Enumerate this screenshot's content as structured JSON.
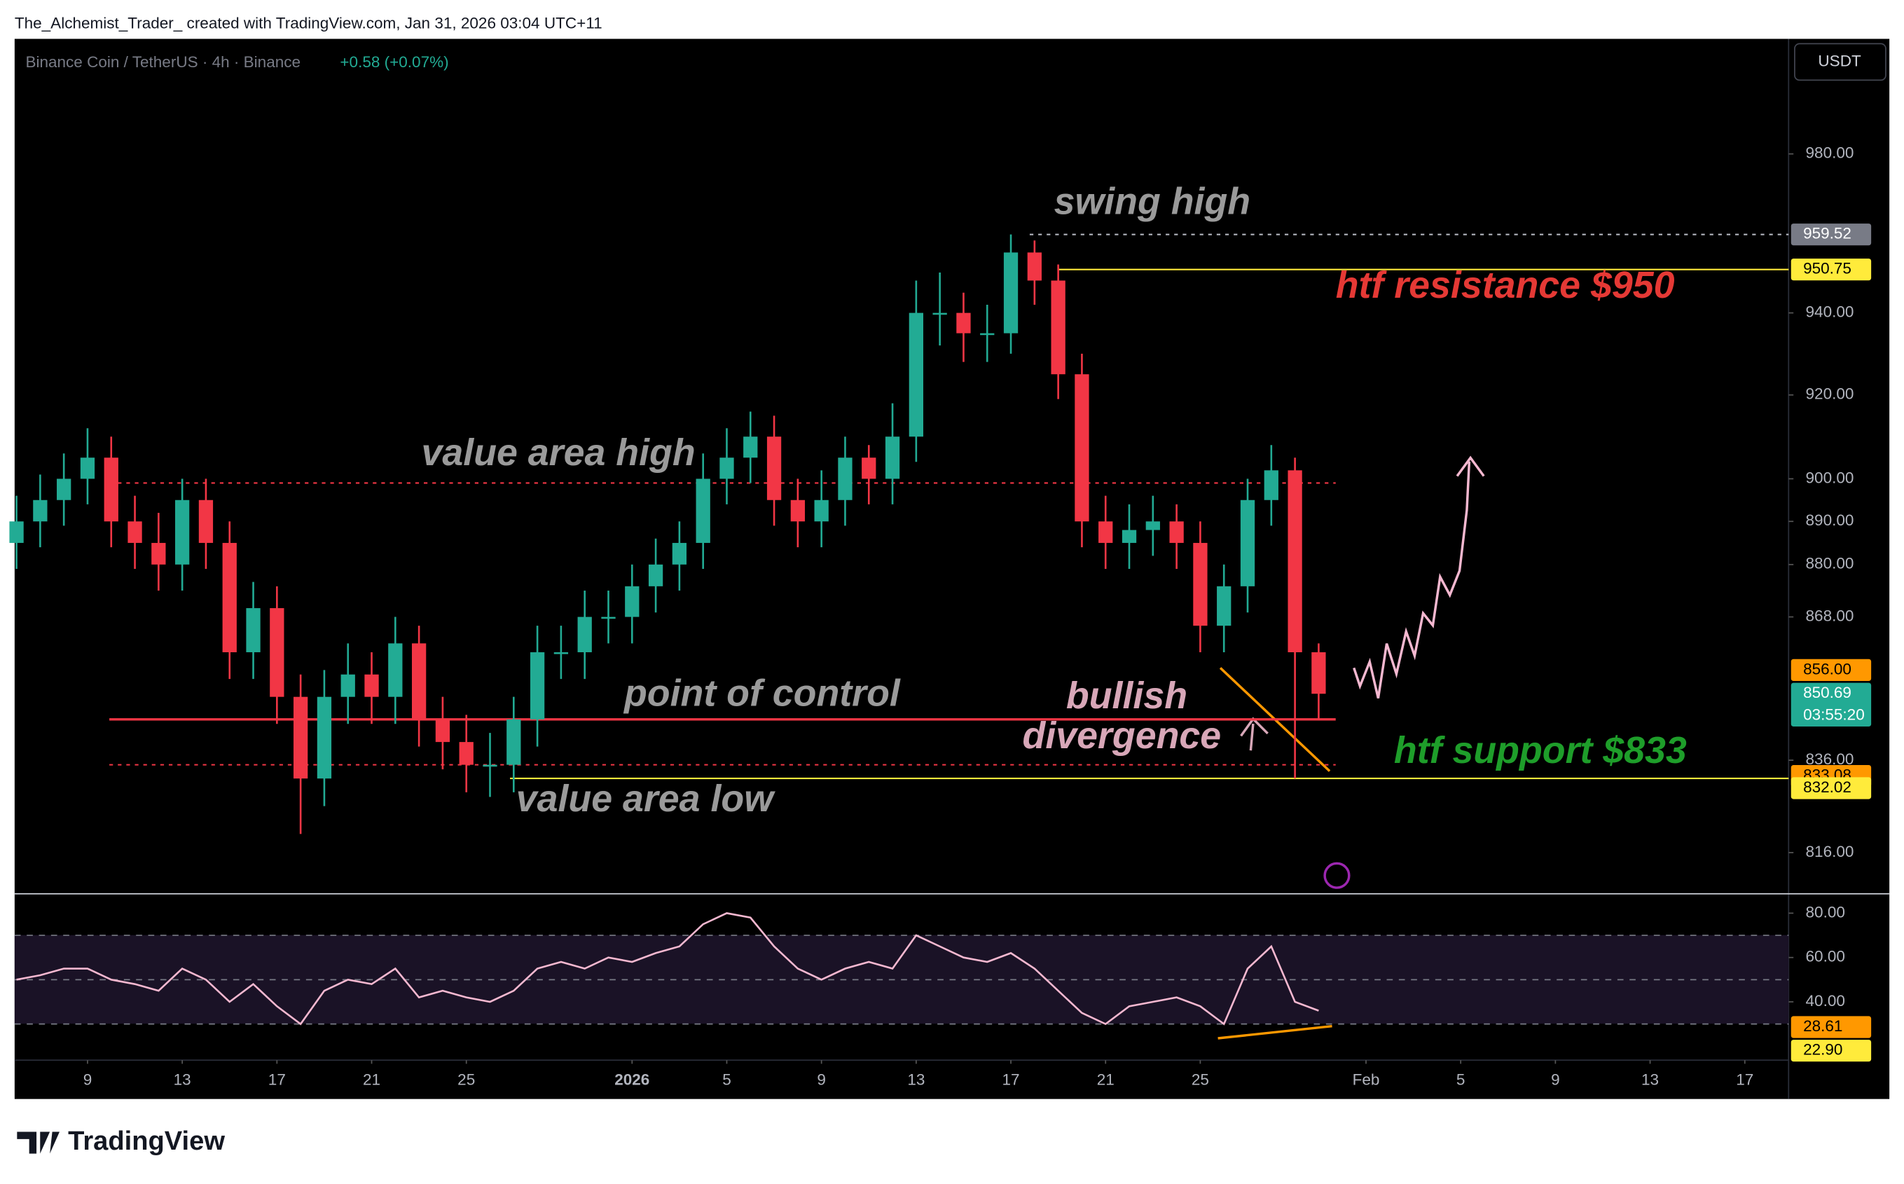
{
  "header": {
    "credit": "The_Alchemist_Trader_ created with TradingView.com, Jan 31, 2026 03:04 UTC+11",
    "symbol": "Binance Coin / TetherUS · 4h · Binance",
    "change": "+0.58 (+0.07%)",
    "currency": "USDT",
    "logo": "TradingView"
  },
  "chart_data": {
    "type": "candlestick",
    "x": [
      -3,
      -2,
      -1,
      0,
      1,
      2,
      3,
      4,
      5,
      6,
      7,
      8,
      9,
      10,
      11,
      12,
      13,
      14,
      15,
      16,
      17,
      18,
      19,
      20,
      21,
      22,
      23,
      24,
      25,
      26,
      27,
      28,
      29,
      30,
      31,
      32,
      33,
      34,
      35,
      36,
      37,
      38,
      39,
      40,
      41,
      42,
      43,
      44,
      45,
      46,
      47,
      48,
      49,
      50,
      51,
      52
    ],
    "open": [
      885,
      890,
      895,
      900,
      905,
      890,
      885,
      880,
      895,
      885,
      860,
      870,
      850,
      832,
      850,
      855,
      850,
      862,
      845,
      840,
      835,
      835,
      845,
      860,
      860,
      868,
      868,
      875,
      880,
      885,
      900,
      905,
      910,
      895,
      890,
      895,
      905,
      900,
      910,
      940,
      940,
      935,
      935,
      955,
      948,
      925,
      890,
      885,
      888,
      890,
      885,
      866,
      875,
      895,
      902,
      860
    ],
    "high": [
      896,
      901,
      906,
      912,
      910,
      896,
      892,
      900,
      900,
      890,
      876,
      875,
      855,
      856,
      862,
      860,
      868,
      866,
      850,
      846,
      842,
      850,
      866,
      866,
      874,
      874,
      880,
      886,
      890,
      906,
      912,
      916,
      915,
      900,
      902,
      910,
      908,
      918,
      948,
      950,
      945,
      942,
      959.52,
      958,
      952,
      930,
      896,
      894,
      896,
      894,
      890,
      880,
      900,
      908,
      905,
      862
    ],
    "low": [
      879,
      884,
      889,
      894,
      884,
      879,
      874,
      874,
      879,
      854,
      854,
      844,
      820,
      826,
      844,
      844,
      844,
      839,
      834,
      829,
      828,
      829,
      839,
      854,
      854,
      862,
      862,
      869,
      874,
      879,
      894,
      899,
      889,
      884,
      884,
      889,
      894,
      894,
      904,
      932,
      928,
      928,
      930,
      942,
      919,
      884,
      879,
      879,
      882,
      879,
      860,
      860,
      869,
      889,
      832.02,
      845
    ],
    "close": [
      890,
      895,
      900,
      905,
      890,
      885,
      880,
      895,
      885,
      860,
      870,
      850,
      832,
      850,
      855,
      850,
      862,
      845,
      840,
      835,
      835,
      845,
      860,
      860,
      868,
      868,
      875,
      880,
      885,
      900,
      905,
      910,
      895,
      890,
      895,
      905,
      900,
      910,
      940,
      940,
      935,
      935,
      955,
      948,
      925,
      890,
      885,
      888,
      890,
      885,
      866,
      875,
      895,
      902,
      860,
      850.69
    ],
    "up_color": "#22ab94",
    "down_color": "#f23645",
    "log_scale": true,
    "xlim": [
      -3.08,
      71.85
    ],
    "ylim": [
      807.5,
      1010
    ],
    "xticks": [
      {
        "value": 0,
        "label": "9"
      },
      {
        "value": 4,
        "label": "13"
      },
      {
        "value": 8,
        "label": "17"
      },
      {
        "value": 12,
        "label": "21"
      },
      {
        "value": 16,
        "label": "25"
      },
      {
        "value": 23,
        "label": "2026"
      },
      {
        "value": 27,
        "label": "5"
      },
      {
        "value": 31,
        "label": "9"
      },
      {
        "value": 35,
        "label": "13"
      },
      {
        "value": 39,
        "label": "17"
      },
      {
        "value": 43,
        "label": "21"
      },
      {
        "value": 47,
        "label": "25"
      },
      {
        "value": 54,
        "label": "Feb"
      },
      {
        "value": 58,
        "label": "5"
      },
      {
        "value": 62,
        "label": "9"
      },
      {
        "value": 66,
        "label": "13"
      },
      {
        "value": 70,
        "label": "17"
      }
    ],
    "yticks": [
      {
        "value": 980,
        "label": "980.00"
      },
      {
        "value": 940,
        "label": "940.00"
      },
      {
        "value": 920,
        "label": "920.00"
      },
      {
        "value": 900,
        "label": "900.00"
      },
      {
        "value": 890,
        "label": "890.00"
      },
      {
        "value": 880,
        "label": "880.00"
      },
      {
        "value": 868,
        "label": "868.00"
      },
      {
        "value": 836,
        "label": "836.00"
      },
      {
        "value": 816,
        "label": "816.00"
      }
    ],
    "lines": [
      {
        "value": 959.52,
        "color": "#b2b5be",
        "dashed": true
      },
      {
        "value": 950.75,
        "color": "#ffeb3b",
        "dashed": false
      },
      {
        "value": 899,
        "color": "#f23645",
        "dashed": true
      },
      {
        "value": 845,
        "color": "#f23645",
        "dashed": false
      },
      {
        "value": 835,
        "color": "#f23645",
        "dashed": true
      },
      {
        "value": 832.02,
        "color": "#ffeb3b",
        "dashed": false
      }
    ],
    "badges": [
      {
        "value": 959.52,
        "label": "959.52",
        "color": "#787b86"
      },
      {
        "value": 950.75,
        "label": "950.75",
        "color": "#ffeb3b"
      },
      {
        "value": 856,
        "label": "856.00",
        "color": "#ff9800"
      },
      {
        "value": 850.69,
        "label": "850.69",
        "color": "#22ab94",
        "countdown": "03:55:20"
      },
      {
        "value": 833.08,
        "label": "833.08",
        "color": "#ff9800"
      },
      {
        "value": 832.02,
        "label": "832.02",
        "color": "#ffeb3b"
      }
    ],
    "annotations": [
      {
        "text": "swing high",
        "color": "#9a9a9a"
      },
      {
        "text": "htf resistance $950",
        "color": "#e53935"
      },
      {
        "text": "value area high",
        "color": "#9a9a9a"
      },
      {
        "text": "point of control",
        "color": "#9a9a9a"
      },
      {
        "text": "bullish",
        "color": "#d8a7b8"
      },
      {
        "text": "divergence",
        "color": "#d8a7b8"
      },
      {
        "text": "value area low",
        "color": "#9a9a9a"
      },
      {
        "text": "htf support $833",
        "color": "#1e9e2a"
      }
    ],
    "rsi": {
      "values": [
        50,
        52,
        55,
        55,
        50,
        48,
        45,
        55,
        50,
        40,
        48,
        38,
        30,
        45,
        50,
        48,
        55,
        42,
        45,
        42,
        40,
        45,
        55,
        58,
        55,
        60,
        58,
        62,
        65,
        75,
        80,
        78,
        65,
        55,
        50,
        55,
        58,
        55,
        70,
        65,
        60,
        58,
        62,
        55,
        45,
        35,
        30,
        38,
        40,
        42,
        38,
        30,
        55,
        65,
        40,
        36
      ],
      "color": "#f5b8d0",
      "ylim": [
        13.7,
        88.2
      ],
      "yticks": [
        {
          "value": 80,
          "label": "80.00"
        },
        {
          "value": 60,
          "label": "60.00"
        },
        {
          "value": 40,
          "label": "40.00"
        }
      ],
      "levels": [
        70,
        50,
        30
      ],
      "badges": [
        {
          "value": 28.61,
          "label": "28.61",
          "color": "#ff9800"
        },
        {
          "value": 22.9,
          "label": "22.90",
          "color": "#ffeb3b"
        }
      ]
    }
  }
}
